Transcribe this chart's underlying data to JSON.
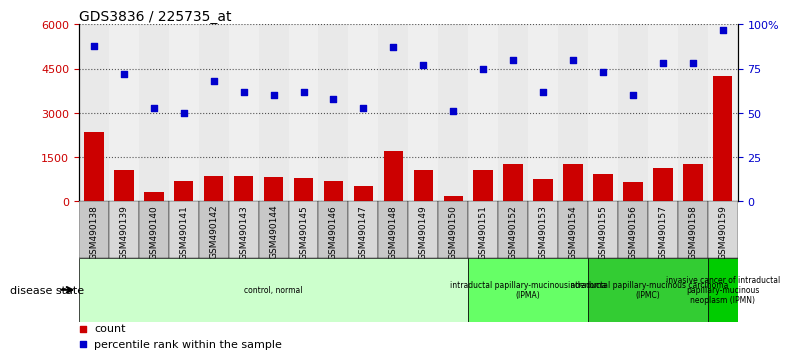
{
  "title": "GDS3836 / 225735_at",
  "samples": [
    "GSM490138",
    "GSM490139",
    "GSM490140",
    "GSM490141",
    "GSM490142",
    "GSM490143",
    "GSM490144",
    "GSM490145",
    "GSM490146",
    "GSM490147",
    "GSM490148",
    "GSM490149",
    "GSM490150",
    "GSM490151",
    "GSM490152",
    "GSM490153",
    "GSM490154",
    "GSM490155",
    "GSM490156",
    "GSM490157",
    "GSM490158",
    "GSM490159"
  ],
  "counts": [
    2350,
    1050,
    330,
    680,
    870,
    870,
    830,
    780,
    680,
    520,
    1700,
    1060,
    180,
    1060,
    1280,
    760,
    1280,
    930,
    670,
    1120,
    1280,
    4250
  ],
  "percentiles": [
    88,
    72,
    53,
    50,
    68,
    62,
    60,
    62,
    58,
    53,
    87,
    77,
    51,
    75,
    80,
    62,
    80,
    73,
    60,
    78,
    78,
    97
  ],
  "bar_color": "#cc0000",
  "dot_color": "#0000cc",
  "ylim_left": [
    0,
    6000
  ],
  "ylim_right": [
    0,
    100
  ],
  "yticks_left": [
    0,
    1500,
    3000,
    4500,
    6000
  ],
  "ytick_labels_left": [
    "0",
    "1500",
    "3000",
    "4500",
    "6000"
  ],
  "yticks_right": [
    0,
    25,
    50,
    75,
    100
  ],
  "ytick_labels_right": [
    "0",
    "25",
    "50",
    "75",
    "100%"
  ],
  "groups": [
    {
      "label": "control, normal",
      "start": 0,
      "end": 13,
      "color": "#ccffcc"
    },
    {
      "label": "intraductal papillary-mucinous adenoma\n(IPMA)",
      "start": 13,
      "end": 17,
      "color": "#66ff66"
    },
    {
      "label": "intraductal papillary-mucinous carcinoma\n(IPMC)",
      "start": 17,
      "end": 21,
      "color": "#33cc33"
    },
    {
      "label": "invasive cancer of intraductal\npapillary-mucinous\nneoplasm (IPMN)",
      "start": 21,
      "end": 22,
      "color": "#00cc00"
    }
  ],
  "disease_state_label": "disease state",
  "legend_count_label": "count",
  "legend_percentile_label": "percentile rank within the sample",
  "grid_color": "black",
  "col_colors": [
    "#c8c8c8",
    "#d8d8d8"
  ]
}
